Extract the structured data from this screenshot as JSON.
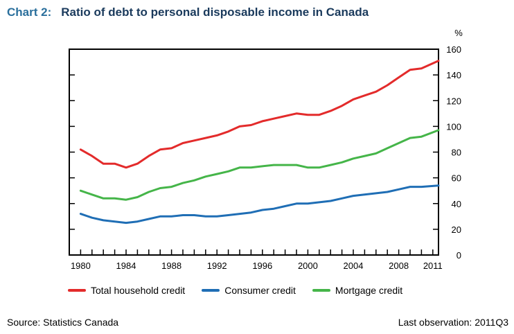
{
  "chart_number": "Chart 2:",
  "title": "Ratio of debt to personal disposable income in Canada",
  "source": "Source: Statistics Canada",
  "last_observation": "Last observation: 2011Q3",
  "chart_data": {
    "type": "line",
    "title": "Ratio of debt to personal disposable income in Canada",
    "ylabel": "%",
    "ylim": [
      0,
      160
    ],
    "y_ticks": [
      0,
      20,
      40,
      60,
      80,
      100,
      120,
      140,
      160
    ],
    "xlim": [
      1979,
      2011.5
    ],
    "x_ticks": [
      1980,
      1984,
      1988,
      1992,
      1996,
      2000,
      2004,
      2008,
      2011
    ],
    "x": [
      1980,
      1981,
      1982,
      1983,
      1984,
      1985,
      1986,
      1987,
      1988,
      1989,
      1990,
      1991,
      1992,
      1993,
      1994,
      1995,
      1996,
      1997,
      1998,
      1999,
      2000,
      2001,
      2002,
      2003,
      2004,
      2005,
      2006,
      2007,
      2008,
      2009,
      2010,
      2011.5
    ],
    "series": [
      {
        "name": "Total household credit",
        "color": "#e32b2b",
        "values": [
          82,
          77,
          71,
          71,
          68,
          71,
          77,
          82,
          83,
          87,
          89,
          91,
          93,
          96,
          100,
          101,
          104,
          106,
          108,
          110,
          109,
          109,
          112,
          116,
          121,
          124,
          127,
          132,
          138,
          144,
          145,
          151
        ]
      },
      {
        "name": "Consumer credit",
        "color": "#1f6eb5",
        "values": [
          32,
          29,
          27,
          26,
          25,
          26,
          28,
          30,
          30,
          31,
          31,
          30,
          30,
          31,
          32,
          33,
          35,
          36,
          38,
          40,
          40,
          41,
          42,
          44,
          46,
          47,
          48,
          49,
          51,
          53,
          53,
          54
        ]
      },
      {
        "name": "Mortgage credit",
        "color": "#45b549",
        "values": [
          50,
          47,
          44,
          44,
          43,
          45,
          49,
          52,
          53,
          56,
          58,
          61,
          63,
          65,
          68,
          68,
          69,
          70,
          70,
          70,
          68,
          68,
          70,
          72,
          75,
          77,
          79,
          83,
          87,
          91,
          92,
          97
        ]
      }
    ],
    "legend": "bottom",
    "grid": false
  }
}
